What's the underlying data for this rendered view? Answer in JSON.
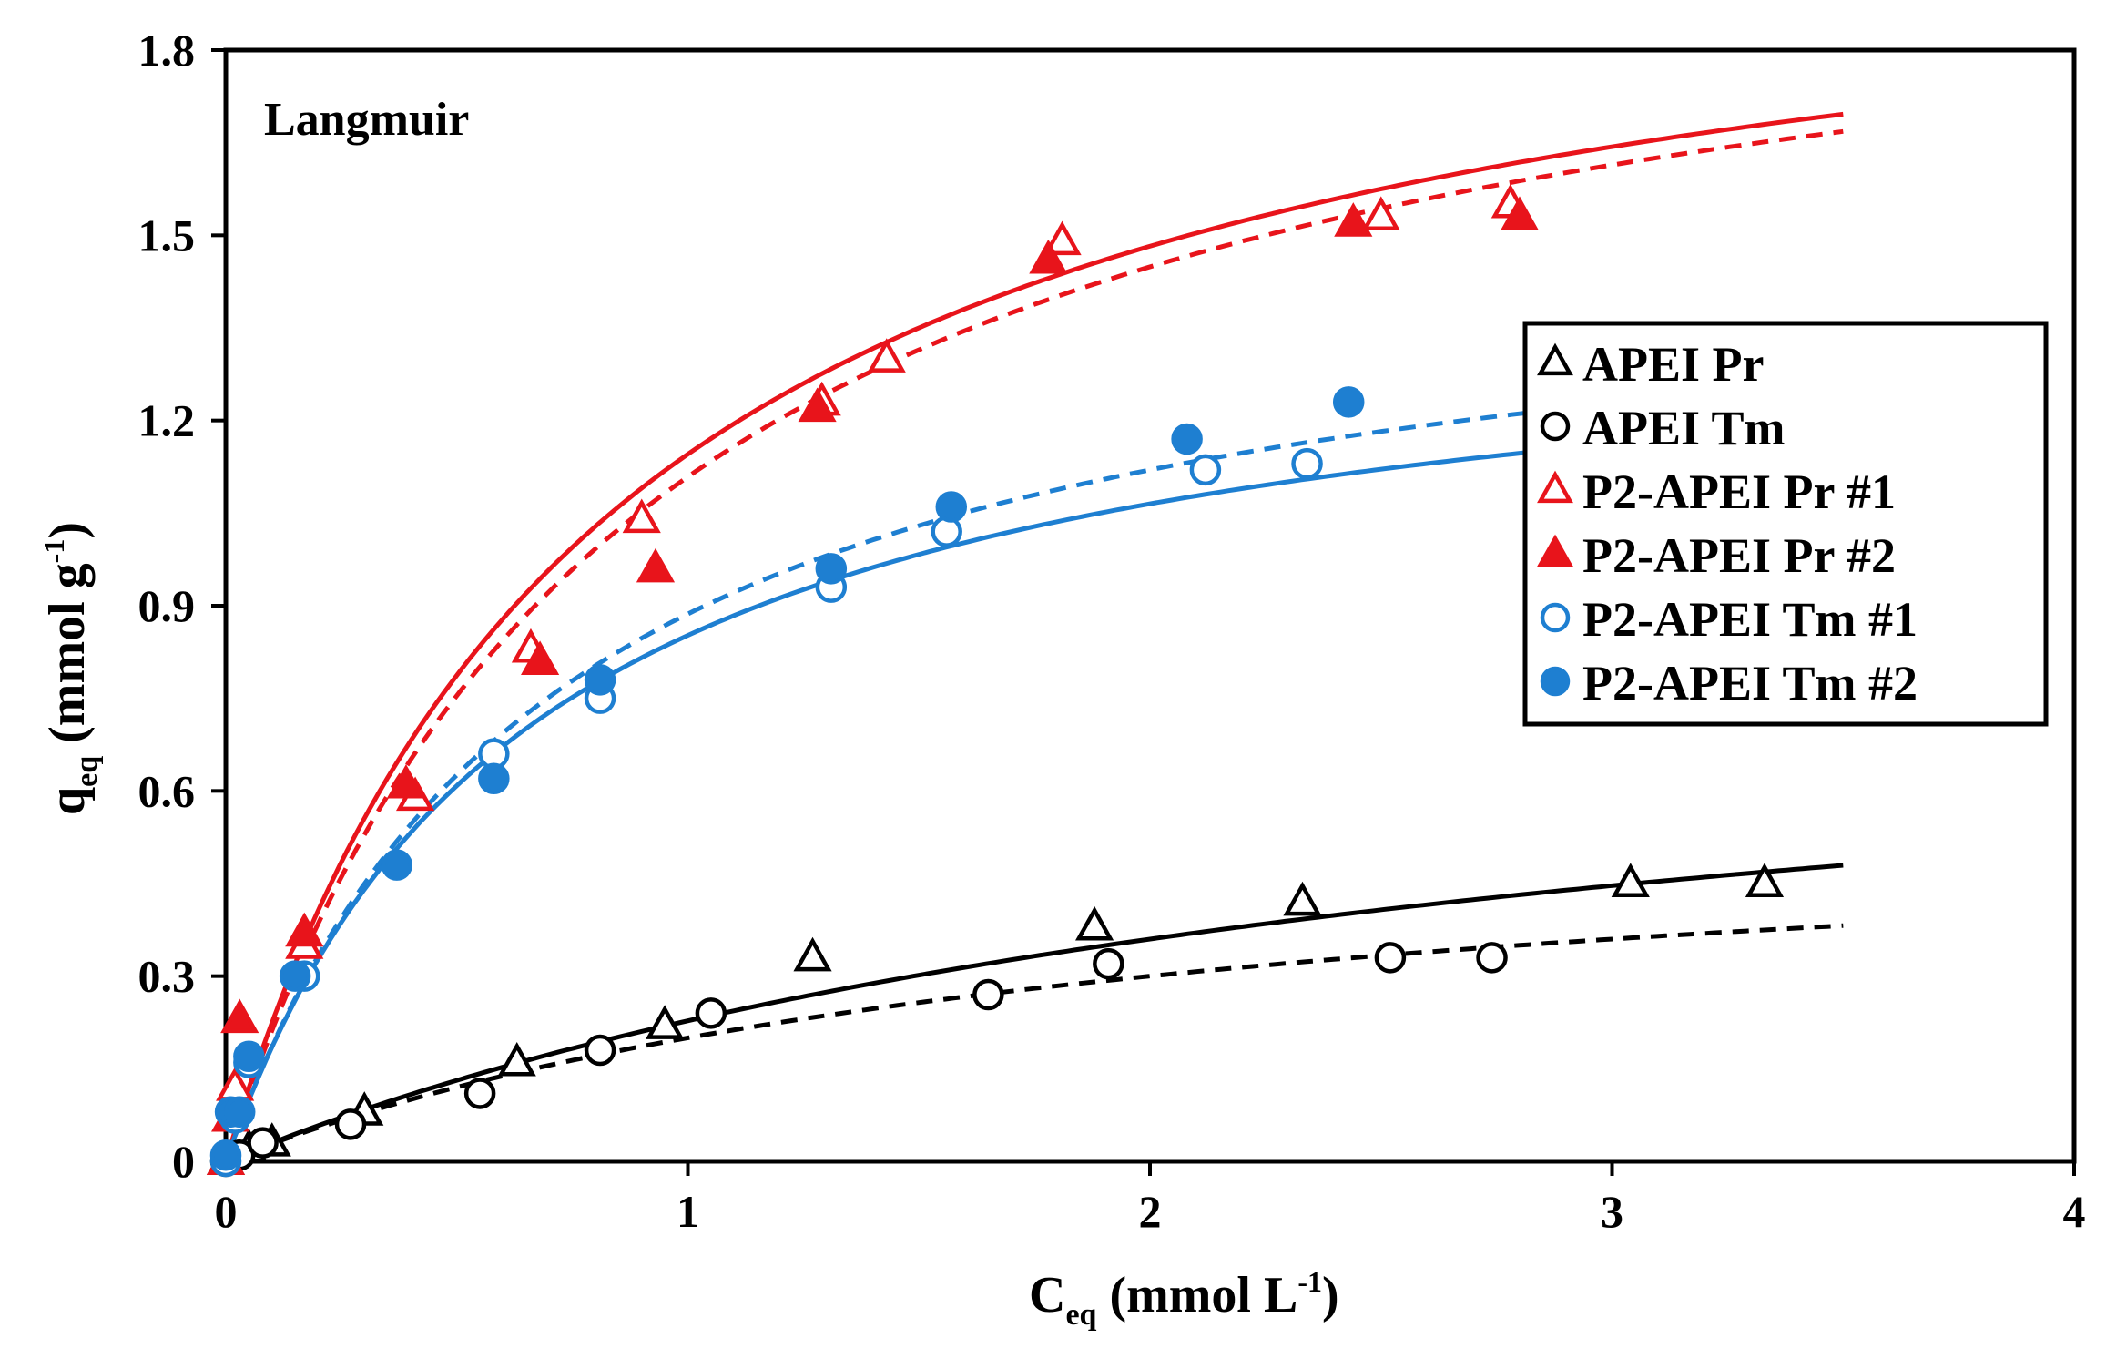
{
  "chart_data": {
    "type": "scatter",
    "title": "",
    "annotation": "Langmuir",
    "xlabel": {
      "main": "C",
      "sub": "eq",
      "rest": " (mmol  L",
      "sup": "-1",
      "close": ")"
    },
    "ylabel": {
      "main": "q",
      "sub": "eq",
      "rest": " (mmol   g",
      "sup": "-1",
      "close": ")"
    },
    "xlim": [
      0,
      4
    ],
    "ylim": [
      0,
      1.8
    ],
    "xticks": [
      0,
      1,
      2,
      3,
      4
    ],
    "xtick_labels": [
      "0",
      "1",
      "2",
      "3",
      "4"
    ],
    "yticks": [
      0,
      0.3,
      0.6,
      0.9,
      1.2,
      1.5,
      1.8
    ],
    "ytick_labels": [
      "0",
      "0.3",
      "0.6",
      "0.9",
      "1.2",
      "1.5",
      "1.8"
    ],
    "grid": false,
    "legend_position": "right",
    "series": [
      {
        "name": "APEI Pr",
        "marker": "triangle-open",
        "color": "#000000",
        "x": [
          0,
          0.05,
          0.1,
          0.3,
          0.63,
          0.95,
          1.27,
          1.88,
          2.33,
          3.04,
          3.33
        ],
        "y": [
          0,
          0.02,
          0.03,
          0.08,
          0.16,
          0.22,
          0.33,
          0.38,
          0.42,
          0.45,
          0.45
        ]
      },
      {
        "name": "APEI Tm",
        "marker": "circle-open",
        "color": "#000000",
        "x": [
          0,
          0.03,
          0.08,
          0.27,
          0.55,
          0.81,
          1.05,
          1.65,
          1.91,
          2.52,
          2.74
        ],
        "y": [
          0,
          0.01,
          0.03,
          0.06,
          0.11,
          0.18,
          0.24,
          0.27,
          0.32,
          0.33,
          0.33
        ]
      },
      {
        "name": "P2-APEI Pr #1",
        "marker": "triangle-open",
        "color": "#e8141b",
        "x": [
          0,
          0.02,
          0.17,
          0.41,
          0.66,
          0.9,
          1.29,
          1.43,
          1.81,
          2.5,
          2.78
        ],
        "y": [
          0,
          0.12,
          0.35,
          0.59,
          0.83,
          1.04,
          1.23,
          1.3,
          1.49,
          1.53,
          1.55
        ]
      },
      {
        "name": "P2-APEI Pr #2",
        "marker": "triangle-filled",
        "color": "#e8141b",
        "x": [
          0.01,
          0.03,
          0.17,
          0.39,
          0.68,
          0.93,
          1.28,
          1.78,
          2.44,
          2.8
        ],
        "y": [
          0.07,
          0.23,
          0.37,
          0.61,
          0.81,
          0.96,
          1.22,
          1.46,
          1.52,
          1.53
        ]
      },
      {
        "name": "P2-APEI Tm #1",
        "marker": "circle-open",
        "color": "#1e7fd1",
        "x": [
          0,
          0.02,
          0.05,
          0.17,
          0.58,
          0.81,
          1.31,
          1.56,
          2.12,
          2.34
        ],
        "y": [
          0,
          0.07,
          0.16,
          0.3,
          0.66,
          0.75,
          0.93,
          1.02,
          1.12,
          1.13
        ]
      },
      {
        "name": "P2-APEI Tm #2",
        "marker": "circle-filled",
        "color": "#1e7fd1",
        "x": [
          0,
          0.01,
          0.03,
          0.05,
          0.15,
          0.37,
          0.58,
          0.81,
          1.31,
          1.57,
          2.08,
          2.43
        ],
        "y": [
          0.01,
          0.08,
          0.08,
          0.17,
          0.3,
          0.48,
          0.62,
          0.78,
          0.96,
          1.06,
          1.17,
          1.23
        ]
      }
    ],
    "fits": [
      {
        "name": "APEI Pr fit",
        "color": "#000000",
        "style": "solid",
        "model": "langmuir",
        "qmax": 0.86,
        "KL": 0.36,
        "x_range": [
          0,
          3.5
        ]
      },
      {
        "name": "APEI Tm fit",
        "color": "#000000",
        "style": "dashed",
        "model": "langmuir",
        "qmax": 0.6,
        "KL": 0.5,
        "x_range": [
          0,
          3.5
        ]
      },
      {
        "name": "P2-APEI Pr #1 fit",
        "color": "#e8141b",
        "style": "solid",
        "model": "langmuir",
        "qmax": 2.1,
        "KL": 1.2,
        "x_range": [
          0,
          3.5
        ]
      },
      {
        "name": "P2-APEI Pr #2 fit",
        "color": "#e8141b",
        "style": "dashed",
        "model": "langmuir",
        "qmax": 2.09,
        "KL": 1.13,
        "x_range": [
          0,
          3.5
        ]
      },
      {
        "name": "P2-APEI Tm #1 fit",
        "color": "#1e7fd1",
        "style": "solid",
        "model": "langmuir",
        "qmax": 1.42,
        "KL": 1.5,
        "x_range": [
          0,
          3.5
        ]
      },
      {
        "name": "P2-APEI Tm #2 fit",
        "color": "#1e7fd1",
        "style": "dashed",
        "model": "langmuir",
        "qmax": 1.52,
        "KL": 1.4,
        "x_range": [
          0,
          3.5
        ]
      }
    ]
  }
}
